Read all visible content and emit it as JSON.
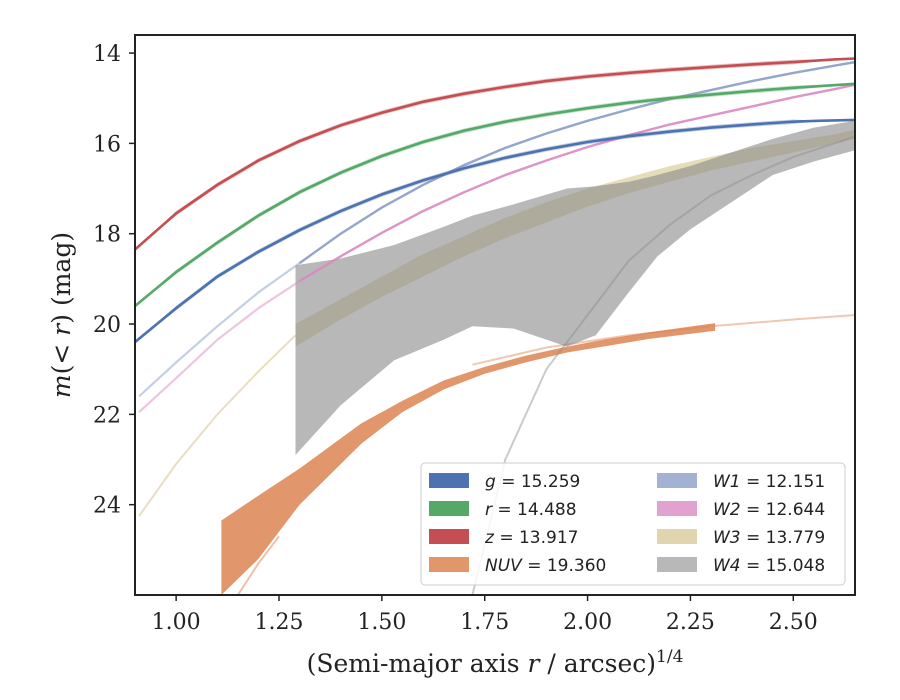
{
  "chart_data": {
    "type": "line",
    "title": "",
    "xlabel": "(Semi-major axis r / arcsec)",
    "xlabel_parts": {
      "pre": "(Semi-major axis ",
      "var": "r",
      "post": " / arcsec)",
      "sup": "1/4"
    },
    "ylabel": "m(< r) (mag)",
    "ylabel_parts": {
      "var": "m",
      "open": "(",
      "lt": "< ",
      "var2": "r",
      "close": ")",
      "unit": " (mag)"
    },
    "xlim": [
      0.9,
      2.65
    ],
    "ylim": [
      26.0,
      13.6
    ],
    "y_inverted": true,
    "xticks": [
      1.0,
      1.25,
      1.5,
      1.75,
      2.0,
      2.25,
      2.5
    ],
    "xtick_labels": [
      "1.00",
      "1.25",
      "1.50",
      "1.75",
      "2.00",
      "2.25",
      "2.50"
    ],
    "yticks": [
      14,
      16,
      18,
      20,
      22,
      24
    ],
    "ytick_labels": [
      "14",
      "16",
      "18",
      "20",
      "22",
      "24"
    ],
    "grid": false,
    "legend_position": "lower-right",
    "legend_columns": 2,
    "series": [
      {
        "name": "g",
        "label_value": "15.259",
        "color": "#4c72b0",
        "kind": "line",
        "x": [
          0.9,
          1.0,
          1.1,
          1.2,
          1.3,
          1.4,
          1.5,
          1.6,
          1.7,
          1.8,
          1.9,
          2.0,
          2.1,
          2.2,
          2.3,
          2.4,
          2.5,
          2.56,
          2.65
        ],
        "y": [
          20.4,
          19.65,
          18.95,
          18.4,
          17.92,
          17.5,
          17.13,
          16.82,
          16.55,
          16.32,
          16.13,
          15.97,
          15.84,
          15.74,
          15.65,
          15.58,
          15.52,
          15.5,
          15.48
        ],
        "ribbon": [
          0.0,
          0.05,
          0.05,
          0.05,
          0.05,
          0.05,
          0.05,
          0.05,
          0.05,
          0.05,
          0.05,
          0.05,
          0.05,
          0.05,
          0.05,
          0.05,
          0.05,
          0.0,
          0.0
        ]
      },
      {
        "name": "r",
        "label_value": "14.488",
        "color": "#55a868",
        "kind": "line",
        "x": [
          0.9,
          1.0,
          1.1,
          1.2,
          1.3,
          1.4,
          1.5,
          1.6,
          1.7,
          1.8,
          1.9,
          2.0,
          2.1,
          2.2,
          2.3,
          2.4,
          2.5,
          2.65
        ],
        "y": [
          19.6,
          18.85,
          18.2,
          17.6,
          17.08,
          16.65,
          16.28,
          15.97,
          15.72,
          15.52,
          15.36,
          15.22,
          15.1,
          15.0,
          14.92,
          14.84,
          14.77,
          14.68
        ],
        "ribbon": [
          0.0,
          0.05,
          0.05,
          0.05,
          0.05,
          0.05,
          0.05,
          0.05,
          0.05,
          0.05,
          0.05,
          0.05,
          0.05,
          0.05,
          0.05,
          0.05,
          0.05,
          0.0
        ]
      },
      {
        "name": "z",
        "label_value": "13.917",
        "color": "#c44e52",
        "kind": "line",
        "x": [
          0.9,
          1.0,
          1.1,
          1.2,
          1.3,
          1.4,
          1.5,
          1.6,
          1.7,
          1.8,
          1.9,
          2.0,
          2.1,
          2.2,
          2.3,
          2.4,
          2.5,
          2.6,
          2.65
        ],
        "y": [
          18.35,
          17.55,
          16.92,
          16.38,
          15.95,
          15.6,
          15.32,
          15.08,
          14.9,
          14.75,
          14.62,
          14.52,
          14.44,
          14.37,
          14.31,
          14.25,
          14.2,
          14.14,
          14.12
        ],
        "ribbon": [
          0.0,
          0.05,
          0.05,
          0.05,
          0.05,
          0.05,
          0.05,
          0.05,
          0.05,
          0.05,
          0.05,
          0.05,
          0.05,
          0.05,
          0.05,
          0.05,
          0.05,
          0.0,
          0.0
        ]
      },
      {
        "name": "NUV",
        "label_value": "19.360",
        "color": "#dd8452",
        "kind": "band",
        "x": [
          1.11,
          1.2,
          1.3,
          1.45,
          1.55,
          1.65,
          1.75,
          1.85,
          1.95,
          2.05,
          2.15,
          2.31
        ],
        "y_low": [
          26.0,
          25.2,
          24.0,
          22.65,
          21.95,
          21.45,
          21.1,
          20.85,
          20.63,
          20.48,
          20.33,
          20.15
        ],
        "y_high": [
          24.35,
          23.8,
          23.2,
          22.2,
          21.7,
          21.25,
          20.95,
          20.7,
          20.5,
          20.33,
          20.18,
          19.98
        ],
        "extension_x": [
          1.72,
          1.9,
          2.1,
          2.3,
          2.5,
          2.65
        ],
        "extension_y": [
          20.9,
          20.52,
          20.25,
          20.05,
          19.9,
          19.8
        ],
        "descent_x": [
          1.15,
          1.2,
          1.25
        ],
        "descent_y": [
          26.0,
          25.3,
          24.7
        ]
      },
      {
        "name": "W1",
        "label_value": "12.151",
        "color": "#8c9fc8",
        "kind": "line",
        "x": [
          0.91,
          1.0,
          1.1,
          1.2,
          1.3,
          1.4,
          1.5,
          1.6,
          1.7,
          1.8,
          1.9,
          2.0,
          2.1,
          2.2,
          2.3,
          2.4,
          2.5,
          2.6,
          2.65
        ],
        "y": [
          21.6,
          20.85,
          20.05,
          19.3,
          18.65,
          18.0,
          17.42,
          16.92,
          16.48,
          16.1,
          15.78,
          15.5,
          15.25,
          15.02,
          14.82,
          14.62,
          14.44,
          14.28,
          14.2
        ],
        "solid_from": 1.29
      },
      {
        "name": "W2",
        "label_value": "12.644",
        "color": "#da8bc3",
        "kind": "line",
        "x": [
          0.91,
          1.0,
          1.1,
          1.2,
          1.3,
          1.4,
          1.5,
          1.6,
          1.7,
          1.8,
          1.9,
          2.0,
          2.1,
          2.2,
          2.3,
          2.4,
          2.5,
          2.6,
          2.65
        ],
        "y": [
          21.95,
          21.2,
          20.35,
          19.65,
          19.05,
          18.5,
          17.98,
          17.5,
          17.08,
          16.7,
          16.38,
          16.08,
          15.82,
          15.58,
          15.38,
          15.18,
          14.98,
          14.8,
          14.7
        ],
        "solid_from": 1.29
      },
      {
        "name": "W3",
        "label_value": "13.779",
        "color": "#ccb974",
        "kind": "band",
        "x": [
          1.29,
          1.4,
          1.5,
          1.6,
          1.7,
          1.8,
          1.9,
          2.0,
          2.1,
          2.2,
          2.3,
          2.4,
          2.5,
          2.6,
          2.65
        ],
        "y_low": [
          20.5,
          19.9,
          19.4,
          18.95,
          18.5,
          18.1,
          17.75,
          17.4,
          17.1,
          16.85,
          16.6,
          16.4,
          16.2,
          16.0,
          15.9
        ],
        "y_high": [
          20.0,
          19.45,
          18.95,
          18.45,
          18.05,
          17.65,
          17.3,
          17.0,
          16.75,
          16.5,
          16.3,
          16.1,
          15.95,
          15.8,
          15.7
        ],
        "extension_x": [
          0.91,
          1.0,
          1.1,
          1.2,
          1.29
        ],
        "extension_y": [
          24.25,
          23.1,
          22.0,
          21.05,
          20.25
        ]
      },
      {
        "name": "W4",
        "label_value": "15.048",
        "color": "#8c8c8c",
        "kind": "band",
        "x": [
          1.29,
          1.4,
          1.53,
          1.65,
          1.72,
          1.82,
          1.95,
          2.02,
          2.1,
          2.17,
          2.25,
          2.35,
          2.45,
          2.55,
          2.65
        ],
        "y_low": [
          22.9,
          21.8,
          20.8,
          20.35,
          20.05,
          20.1,
          20.5,
          20.25,
          19.3,
          18.5,
          17.9,
          17.3,
          16.7,
          16.4,
          16.15
        ],
        "y_high": [
          18.7,
          18.55,
          18.25,
          17.85,
          17.6,
          17.35,
          17.0,
          16.95,
          16.85,
          16.7,
          16.5,
          16.2,
          15.9,
          15.65,
          15.5
        ],
        "extension_x": [
          1.72,
          1.8,
          1.9,
          2.0,
          2.1,
          2.2,
          2.3,
          2.4,
          2.5,
          2.6,
          2.65
        ],
        "extension_y": [
          26.0,
          23.0,
          21.0,
          19.8,
          18.6,
          17.8,
          17.15,
          16.7,
          16.3,
          16.0,
          15.85
        ]
      }
    ]
  }
}
